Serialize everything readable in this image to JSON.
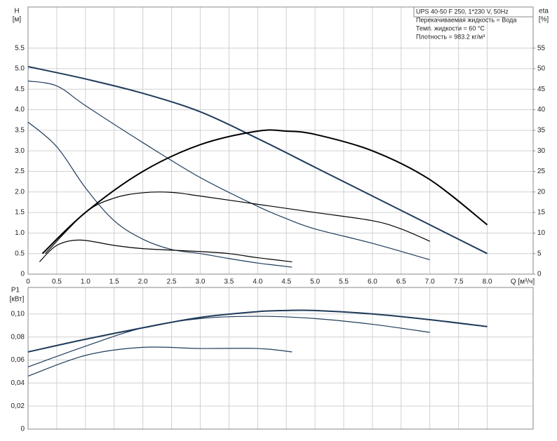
{
  "chart_data": [
    {
      "type": "line",
      "ylabel": "H",
      "yunit": "[м]",
      "y2label": "eta",
      "y2unit": "[%]",
      "xlabel": "Q [м³/ч]",
      "annotations": [
        "UPS 40-50 F 250, 1*230 V, 50Hz",
        "Перекачиваемая жидкость = Вода",
        "Темп. жидкости = 60 °C",
        "Плотность = 983.2 кг/м³"
      ],
      "xlim": [
        0,
        8.8
      ],
      "xticks": [
        0,
        0.5,
        {
          "value": 1,
          "label": "1.0"
        },
        1.5,
        {
          "value": 2,
          "label": "2.0"
        },
        2.5,
        {
          "value": 3,
          "label": "3.0"
        },
        3.5,
        {
          "value": 4,
          "label": "4.0"
        },
        4.5,
        {
          "value": 5,
          "label": "5.0"
        },
        5.5,
        {
          "value": 6,
          "label": "6.0"
        },
        6.5,
        {
          "value": 7,
          "label": "7.0"
        },
        7.5,
        {
          "value": 8,
          "label": "8.0"
        }
      ],
      "ylim": [
        0,
        6.5
      ],
      "yticks": [
        0,
        0.5,
        {
          "value": 1,
          "label": "1.0"
        },
        1.5,
        {
          "value": 2,
          "label": "2.0"
        },
        2.5,
        {
          "value": 3,
          "label": "3.0"
        },
        3.5,
        {
          "value": 4,
          "label": "4.0"
        },
        4.5,
        {
          "value": 5,
          "label": "5.0"
        },
        5.5
      ],
      "y2lim": [
        0,
        65
      ],
      "y2ticks": [
        0,
        5,
        10,
        15,
        20,
        25,
        30,
        35,
        40,
        45,
        50,
        55
      ],
      "grid": true,
      "series": [
        {
          "color": "#1f3b5a",
          "x": [
            0,
            1,
            2,
            3,
            4,
            5,
            6,
            7,
            8
          ],
          "values": [
            5.05,
            4.75,
            4.4,
            3.95,
            3.3,
            2.6,
            1.9,
            1.2,
            0.5
          ]
        },
        {
          "color": "#1f3b5a",
          "x": [
            0,
            0.5,
            1,
            2,
            3,
            4,
            4.5,
            5,
            6,
            7
          ],
          "values": [
            4.7,
            4.58,
            4.1,
            3.2,
            2.35,
            1.65,
            1.35,
            1.1,
            0.75,
            0.35
          ]
        },
        {
          "color": "#1f3b5a",
          "x": [
            0,
            0.5,
            1,
            1.5,
            2,
            2.5,
            3,
            3.5,
            4,
            4.6
          ],
          "values": [
            3.7,
            3.1,
            2.1,
            1.3,
            0.85,
            0.6,
            0.5,
            0.38,
            0.27,
            0.17
          ]
        },
        {
          "color": "#000000",
          "axis": "y2",
          "x": [
            0.25,
            1,
            2,
            3,
            4,
            4.5,
            5,
            6,
            7,
            8
          ],
          "values": [
            5,
            15,
            25,
            31.5,
            34.8,
            34.8,
            34,
            30,
            23,
            12
          ]
        },
        {
          "color": "#000000",
          "axis": "y2",
          "x": [
            0.3,
            1,
            1.5,
            2,
            2.5,
            3,
            4,
            5,
            6,
            6.5,
            7
          ],
          "values": [
            5,
            15,
            18.5,
            19.8,
            19.9,
            19,
            17,
            15,
            13,
            11,
            8
          ]
        },
        {
          "color": "#000000",
          "axis": "y2",
          "x": [
            0.2,
            0.5,
            0.9,
            1.5,
            2,
            3,
            3.5,
            4,
            4.6
          ],
          "values": [
            3,
            7,
            8.3,
            7,
            6.2,
            5.5,
            5,
            4,
            3
          ]
        }
      ]
    },
    {
      "type": "line",
      "ylabel": "P1",
      "yunit": "[кВт]",
      "xlim": [
        0,
        8.8
      ],
      "xticks": [
        0,
        0.5,
        1,
        1.5,
        2,
        2.5,
        3,
        3.5,
        4,
        4.5,
        5,
        5.5,
        6,
        6.5,
        7,
        7.5,
        8
      ],
      "ylim": [
        0,
        0.123
      ],
      "yticks": [
        0,
        {
          "value": 0.02,
          "label": "0,02"
        },
        {
          "value": 0.04,
          "label": "0,04"
        },
        {
          "value": 0.06,
          "label": "0,06"
        },
        {
          "value": 0.08,
          "label": "0,08"
        },
        {
          "value": 0.1,
          "label": "0,10"
        }
      ],
      "grid": true,
      "series": [
        {
          "color": "#1f3b5a",
          "x": [
            0,
            1,
            2,
            3,
            4,
            4.5,
            5,
            6,
            7,
            8
          ],
          "values": [
            0.067,
            0.078,
            0.088,
            0.097,
            0.102,
            0.103,
            0.103,
            0.1,
            0.095,
            0.089
          ]
        },
        {
          "color": "#1f3b5a",
          "x": [
            0,
            1,
            2,
            3,
            4,
            5,
            6,
            7
          ],
          "values": [
            0.054,
            0.072,
            0.088,
            0.096,
            0.098,
            0.096,
            0.091,
            0.084
          ]
        },
        {
          "color": "#1f3b5a",
          "x": [
            0,
            1,
            2,
            3,
            4,
            4.6
          ],
          "values": [
            0.046,
            0.064,
            0.071,
            0.07,
            0.07,
            0.067
          ]
        }
      ]
    }
  ]
}
